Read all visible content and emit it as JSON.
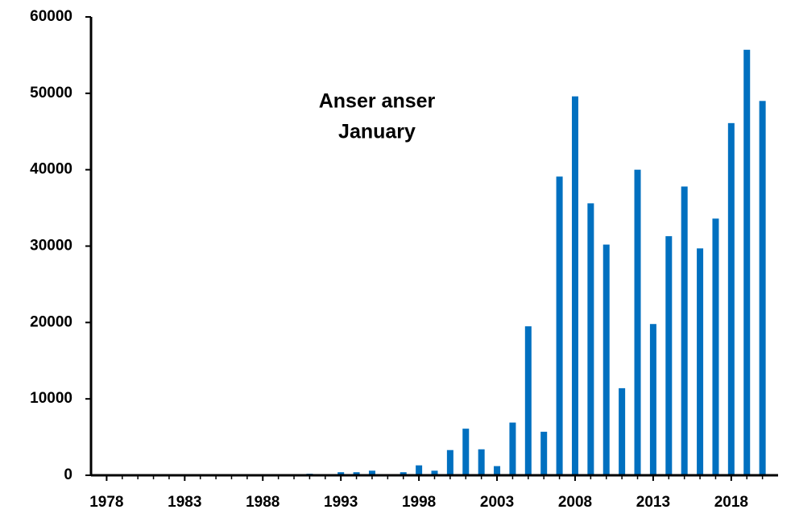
{
  "chart_data": {
    "type": "bar",
    "annotation": [
      "Anser anser",
      "January"
    ],
    "x": [
      1978,
      1979,
      1980,
      1981,
      1982,
      1983,
      1984,
      1985,
      1986,
      1987,
      1988,
      1989,
      1990,
      1991,
      1992,
      1993,
      1994,
      1995,
      1996,
      1997,
      1998,
      1999,
      2000,
      2001,
      2002,
      2003,
      2004,
      2005,
      2006,
      2007,
      2008,
      2009,
      2010,
      2011,
      2012,
      2013,
      2014,
      2015,
      2016,
      2017,
      2018,
      2019,
      2020
    ],
    "values": [
      0,
      0,
      0,
      0,
      0,
      0,
      0,
      0,
      0,
      0,
      0,
      0,
      0,
      200,
      0,
      400,
      400,
      600,
      0,
      400,
      1300,
      600,
      3300,
      6100,
      3400,
      1200,
      6900,
      19500,
      5700,
      39100,
      49600,
      35600,
      30200,
      11400,
      40000,
      19800,
      31300,
      37800,
      29700,
      33600,
      46100,
      55700,
      49000
    ],
    "color": "#0070c0",
    "xlim": [
      1977,
      2021
    ],
    "xticks": [
      1978,
      1983,
      1988,
      1993,
      1998,
      2003,
      2008,
      2013,
      2018
    ],
    "ylim": [
      0,
      60000
    ],
    "yticks": [
      0,
      10000,
      20000,
      30000,
      40000,
      50000,
      60000
    ],
    "grid": false
  }
}
